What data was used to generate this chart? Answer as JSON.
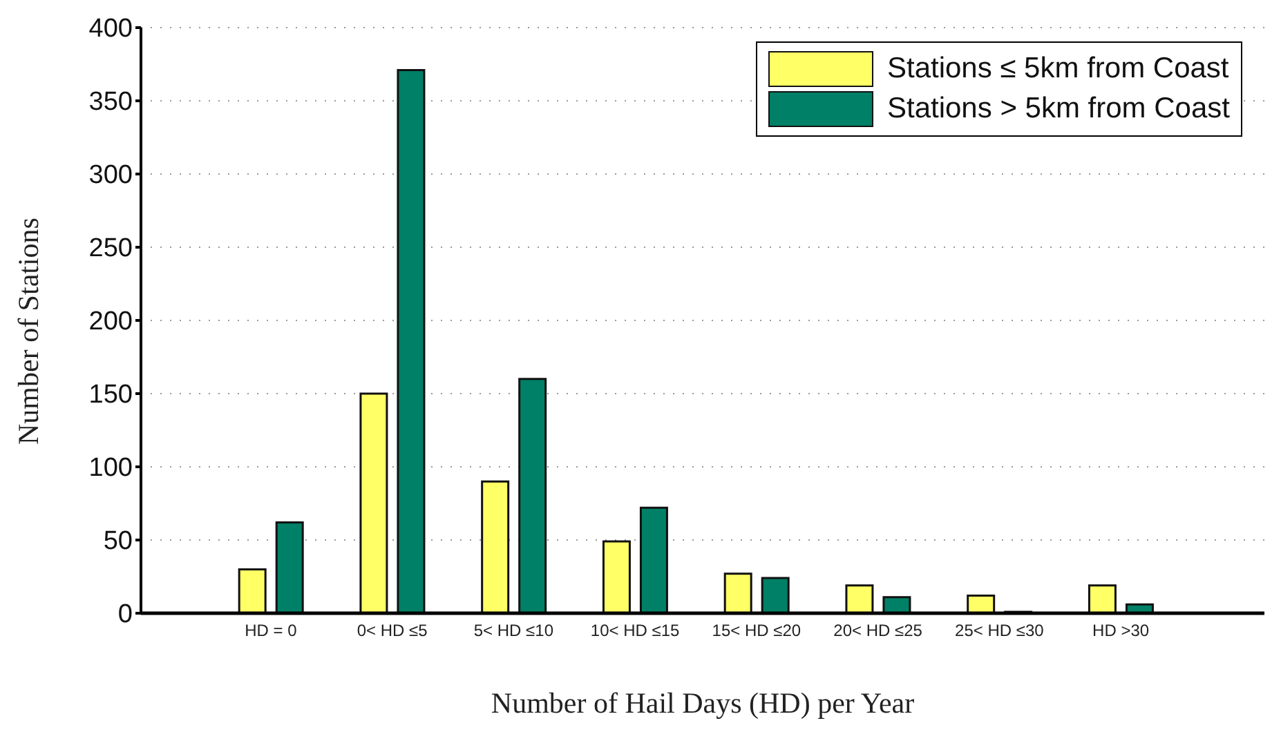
{
  "chart_data": {
    "type": "bar",
    "xlabel": "Number of Hail Days (HD) per Year",
    "ylabel": "Number of Stations",
    "categories": [
      "HD = 0",
      "0< HD ≤5",
      "5< HD ≤10",
      "10< HD ≤15",
      "15< HD ≤20",
      "20< HD ≤25",
      "25< HD ≤30",
      "HD >30"
    ],
    "series": [
      {
        "name": "Stations ≤ 5km from Coast",
        "color": "#ffff66",
        "values": [
          30,
          150,
          90,
          49,
          27,
          19,
          12,
          19
        ]
      },
      {
        "name": "Stations > 5km from Coast",
        "color": "#008066",
        "values": [
          62,
          371,
          160,
          72,
          24,
          11,
          1,
          6
        ]
      }
    ],
    "ylim": [
      0,
      400
    ],
    "yticks": [
      0,
      50,
      100,
      150,
      200,
      250,
      300,
      350,
      400
    ],
    "grid": "y",
    "legend": "top right"
  }
}
